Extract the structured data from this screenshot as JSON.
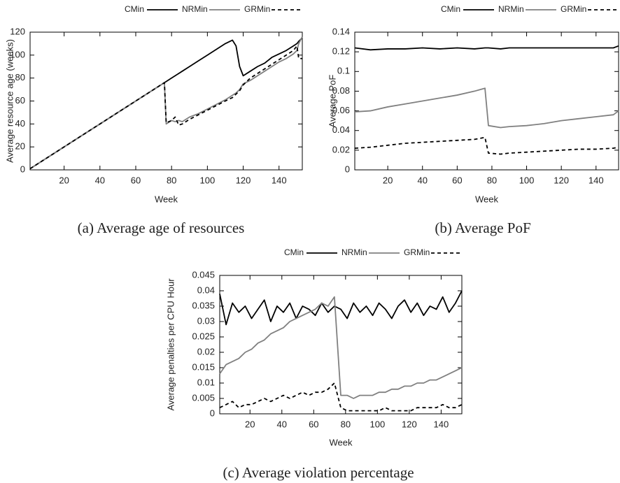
{
  "chart_data": [
    {
      "type": "line",
      "caption": "(a) Average age of resources",
      "x_label": "Week",
      "y_label": "Average resource age (weeks)",
      "x": [
        1,
        20,
        40,
        60,
        76,
        77,
        80,
        82,
        84,
        86,
        90,
        95,
        100,
        105,
        110,
        114,
        116,
        118,
        120,
        124,
        128,
        132,
        136,
        140,
        144,
        148,
        150,
        151,
        153
      ],
      "series": [
        {
          "name": "CMin",
          "color": "#000000",
          "dash": false,
          "values": [
            1,
            20,
            40,
            60,
            76,
            77,
            80,
            82,
            84,
            86,
            90,
            95,
            100,
            105,
            110,
            113,
            108,
            90,
            82,
            86,
            90,
            93,
            98,
            101,
            104,
            108,
            110,
            112,
            115
          ]
        },
        {
          "name": "NRMin",
          "color": "#808080",
          "dash": false,
          "values": [
            1,
            20,
            40,
            60,
            76,
            40,
            43,
            42,
            43,
            42,
            46,
            49,
            53,
            57,
            61,
            65,
            67,
            70,
            75,
            78,
            82,
            86,
            90,
            94,
            97,
            101,
            104,
            110,
            116
          ]
        },
        {
          "name": "GRMin",
          "color": "#000000",
          "dash": true,
          "values": [
            1,
            20,
            40,
            60,
            76,
            41,
            43,
            46,
            39,
            40,
            44,
            48,
            52,
            56,
            60,
            63,
            66,
            69,
            74,
            80,
            84,
            88,
            92,
            96,
            100,
            104,
            108,
            97,
            97
          ]
        }
      ],
      "xlim": [
        1,
        153
      ],
      "xticks": [
        20,
        40,
        60,
        80,
        100,
        120,
        140
      ],
      "ylim": [
        0,
        120
      ],
      "yticks": [
        0,
        20,
        40,
        60,
        80,
        100,
        120
      ],
      "legend": "above-right"
    },
    {
      "type": "line",
      "caption": "(b) Average PoF",
      "x_label": "Week",
      "y_label": "Average PoF",
      "x": [
        1,
        10,
        20,
        30,
        40,
        50,
        60,
        70,
        76,
        78,
        85,
        90,
        100,
        110,
        120,
        130,
        140,
        150,
        153
      ],
      "series": [
        {
          "name": "CMin",
          "color": "#000000",
          "dash": false,
          "values": [
            0.124,
            0.122,
            0.123,
            0.123,
            0.124,
            0.123,
            0.124,
            0.123,
            0.124,
            0.124,
            0.123,
            0.124,
            0.124,
            0.124,
            0.124,
            0.124,
            0.124,
            0.124,
            0.126
          ]
        },
        {
          "name": "NRMin",
          "color": "#808080",
          "dash": false,
          "values": [
            0.059,
            0.06,
            0.064,
            0.067,
            0.07,
            0.073,
            0.076,
            0.08,
            0.083,
            0.045,
            0.043,
            0.044,
            0.045,
            0.047,
            0.05,
            0.052,
            0.054,
            0.056,
            0.06
          ]
        },
        {
          "name": "GRMin",
          "color": "#000000",
          "dash": true,
          "values": [
            0.022,
            0.023,
            0.025,
            0.027,
            0.028,
            0.029,
            0.03,
            0.031,
            0.033,
            0.017,
            0.016,
            0.017,
            0.018,
            0.019,
            0.02,
            0.021,
            0.021,
            0.022,
            0.023
          ]
        }
      ],
      "xlim": [
        1,
        153
      ],
      "xticks": [
        20,
        40,
        60,
        80,
        100,
        120,
        140
      ],
      "ylim": [
        0,
        0.14
      ],
      "yticks": [
        0,
        0.02,
        0.04,
        0.06,
        0.08,
        0.1,
        0.12,
        0.14
      ],
      "legend": "above-right"
    },
    {
      "type": "line",
      "caption": "(c) Average violation percentage",
      "x_label": "Week",
      "y_label": "Average penalties per CPU Hour",
      "x": [
        1,
        5,
        9,
        13,
        17,
        21,
        25,
        29,
        33,
        37,
        41,
        45,
        49,
        53,
        57,
        61,
        65,
        69,
        73,
        77,
        81,
        85,
        89,
        93,
        97,
        101,
        105,
        109,
        113,
        117,
        121,
        125,
        129,
        133,
        137,
        141,
        145,
        149,
        153
      ],
      "series": [
        {
          "name": "CMin",
          "color": "#000000",
          "dash": false,
          "values": [
            0.039,
            0.029,
            0.036,
            0.033,
            0.035,
            0.031,
            0.034,
            0.037,
            0.03,
            0.035,
            0.033,
            0.036,
            0.031,
            0.035,
            0.034,
            0.032,
            0.036,
            0.033,
            0.035,
            0.034,
            0.031,
            0.036,
            0.033,
            0.035,
            0.032,
            0.036,
            0.034,
            0.031,
            0.035,
            0.037,
            0.033,
            0.036,
            0.032,
            0.035,
            0.034,
            0.038,
            0.033,
            0.036,
            0.04
          ]
        },
        {
          "name": "NRMin",
          "color": "#808080",
          "dash": false,
          "values": [
            0.013,
            0.016,
            0.017,
            0.018,
            0.02,
            0.021,
            0.023,
            0.024,
            0.026,
            0.027,
            0.028,
            0.03,
            0.031,
            0.032,
            0.033,
            0.034,
            0.036,
            0.035,
            0.038,
            0.006,
            0.006,
            0.005,
            0.006,
            0.006,
            0.006,
            0.007,
            0.007,
            0.008,
            0.008,
            0.009,
            0.009,
            0.01,
            0.01,
            0.011,
            0.011,
            0.012,
            0.013,
            0.014,
            0.015
          ]
        },
        {
          "name": "GRMin",
          "color": "#000000",
          "dash": true,
          "values": [
            0.002,
            0.003,
            0.004,
            0.002,
            0.003,
            0.003,
            0.004,
            0.005,
            0.004,
            0.005,
            0.006,
            0.005,
            0.006,
            0.007,
            0.006,
            0.007,
            0.007,
            0.008,
            0.01,
            0.002,
            0.001,
            0.001,
            0.001,
            0.001,
            0.001,
            0.001,
            0.002,
            0.001,
            0.001,
            0.001,
            0.001,
            0.002,
            0.002,
            0.002,
            0.002,
            0.003,
            0.002,
            0.002,
            0.003
          ]
        }
      ],
      "xlim": [
        1,
        153
      ],
      "xticks": [
        20,
        40,
        60,
        80,
        100,
        120,
        140
      ],
      "ylim": [
        0,
        0.045
      ],
      "yticks": [
        0,
        0.005,
        0.01,
        0.015,
        0.02,
        0.025,
        0.03,
        0.035,
        0.04,
        0.045
      ],
      "legend": "above-right"
    }
  ]
}
